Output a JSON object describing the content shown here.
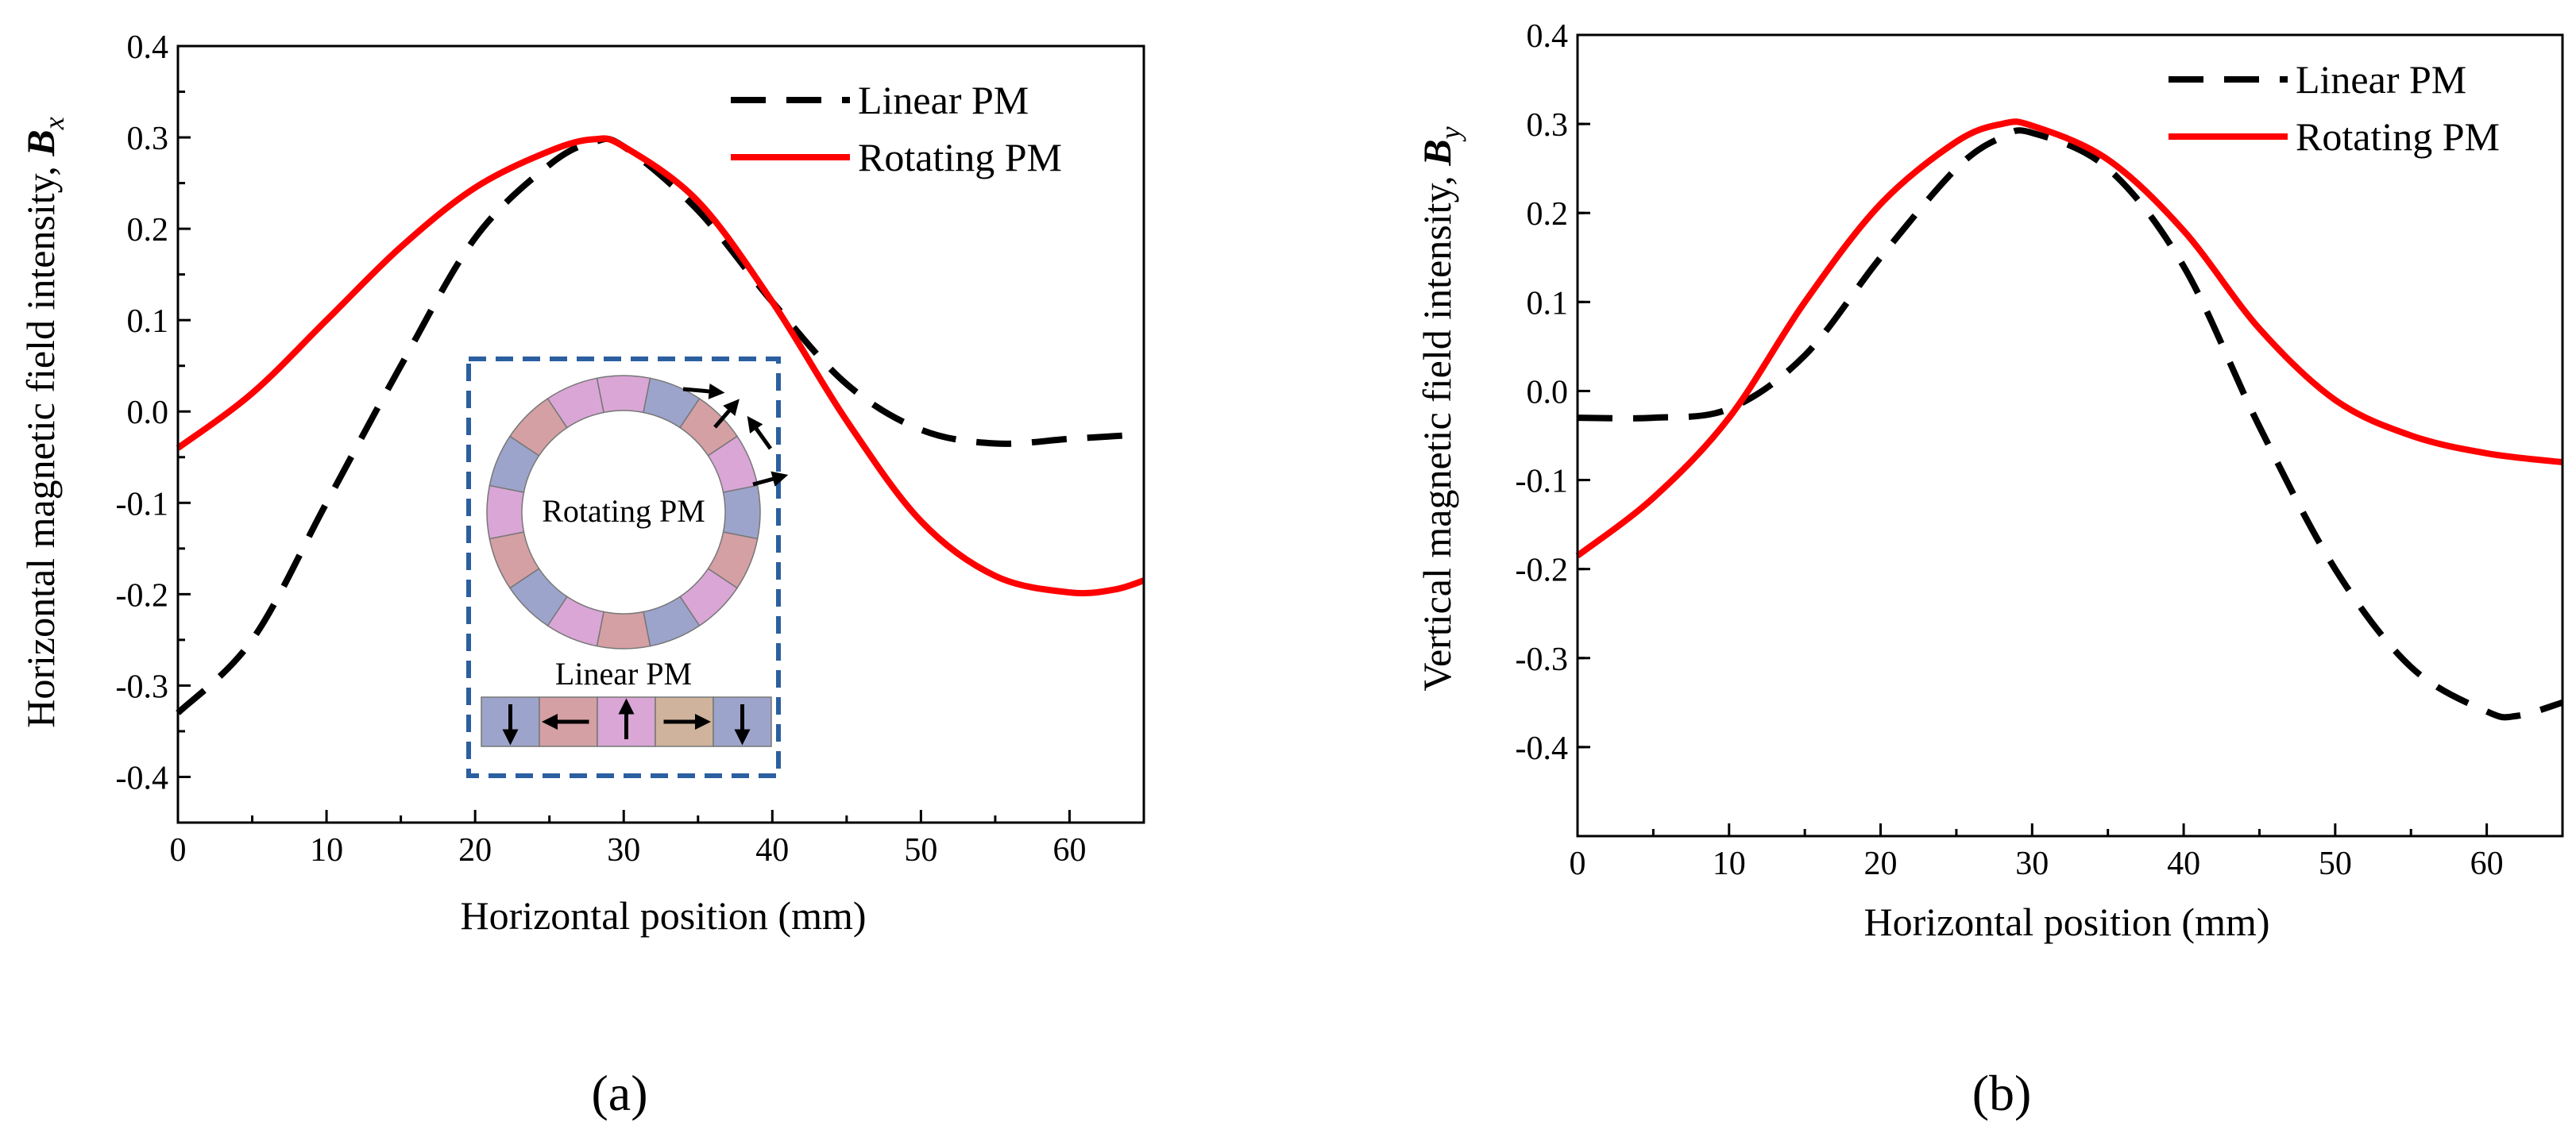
{
  "panel_labels": [
    "(a)",
    "(b)"
  ],
  "chart_data": [
    {
      "type": "line",
      "panel": "(a)",
      "title": "",
      "xlabel": "Horizontal position (mm)",
      "ylabel": "Horizontal magnetic field intensity, ",
      "ylabel_symbol": "B",
      "ylabel_sub": "x",
      "xlim": [
        0,
        65
      ],
      "ylim": [
        -0.45,
        0.4
      ],
      "xticks": [
        0,
        10,
        20,
        30,
        40,
        50,
        60
      ],
      "yticks": [
        -0.4,
        -0.3,
        -0.2,
        -0.1,
        0.0,
        0.1,
        0.2,
        0.3,
        0.4
      ],
      "ytick_labels": [
        "-0.4",
        "-0.3",
        "-0.2",
        "-0.1",
        "0.0",
        "0.1",
        "0.2",
        "0.3",
        "0.4"
      ],
      "grid": true,
      "legend_position": "top-right",
      "series": [
        {
          "name": "Linear PM",
          "style": "dashed",
          "color": "#000000",
          "x": [
            0,
            5,
            10,
            15,
            20,
            25,
            28,
            30,
            35,
            40,
            45,
            50,
            55,
            60,
            65
          ],
          "y": [
            -0.33,
            -0.25,
            -0.1,
            0.05,
            0.19,
            0.27,
            0.295,
            0.29,
            0.22,
            0.12,
            0.03,
            -0.02,
            -0.035,
            -0.03,
            -0.025
          ]
        },
        {
          "name": "Rotating PM",
          "style": "solid",
          "color": "#ff0000",
          "x": [
            0,
            5,
            10,
            15,
            20,
            25,
            28,
            30,
            35,
            40,
            45,
            50,
            55,
            60,
            63,
            65
          ],
          "y": [
            -0.04,
            0.02,
            0.1,
            0.18,
            0.245,
            0.285,
            0.298,
            0.29,
            0.23,
            0.12,
            -0.01,
            -0.12,
            -0.18,
            -0.198,
            -0.195,
            -0.185
          ]
        }
      ],
      "inset": {
        "ring_label": "Rotating PM",
        "bar_label": "Linear PM",
        "ring_segment_colors": [
          "#d9a6d6",
          "#9da4cb",
          "#d4a0a4",
          "#d9a6d6",
          "#9da4cb",
          "#d4a0a4",
          "#d9a6d6",
          "#9da4cb",
          "#d4a0a4",
          "#d9a6d6",
          "#9da4cb",
          "#d4a0a4",
          "#d9a6d6",
          "#9da4cb",
          "#d4a0a4",
          "#d9a6d6"
        ],
        "bar_segment_colors": [
          "#9da4cb",
          "#d4a0a4",
          "#d9a6d6",
          "#cfb39c",
          "#9da4cb"
        ],
        "bar_arrows": [
          "down",
          "left",
          "up",
          "right",
          "down"
        ],
        "border_color": "#2b5fa0"
      }
    },
    {
      "type": "line",
      "panel": "(b)",
      "title": "",
      "xlabel": "Horizontal position (mm)",
      "ylabel": "Vertical magnetic field intensity, ",
      "ylabel_symbol": "B",
      "ylabel_sub": "y",
      "xlim": [
        0,
        65
      ],
      "ylim": [
        -0.5,
        0.4
      ],
      "xticks": [
        0,
        10,
        20,
        30,
        40,
        50,
        60
      ],
      "yticks": [
        -0.4,
        -0.3,
        -0.2,
        -0.1,
        0.0,
        0.1,
        0.2,
        0.3,
        0.4
      ],
      "ytick_labels": [
        "-0.4",
        "-0.3",
        "-0.2",
        "-0.1",
        "0.0",
        "0.1",
        "0.2",
        "0.3",
        "0.4"
      ],
      "grid": true,
      "legend_position": "top-right",
      "series": [
        {
          "name": "Linear PM",
          "style": "dashed",
          "color": "#000000",
          "x": [
            0,
            5,
            10,
            15,
            20,
            25,
            28,
            30,
            35,
            40,
            45,
            50,
            55,
            60,
            62,
            65
          ],
          "y": [
            -0.03,
            -0.03,
            -0.02,
            0.04,
            0.15,
            0.25,
            0.285,
            0.29,
            0.25,
            0.14,
            -0.04,
            -0.2,
            -0.31,
            -0.36,
            -0.365,
            -0.35
          ]
        },
        {
          "name": "Rotating PM",
          "style": "solid",
          "color": "#ff0000",
          "x": [
            0,
            5,
            10,
            15,
            20,
            25,
            28,
            30,
            35,
            40,
            45,
            50,
            55,
            60,
            65
          ],
          "y": [
            -0.185,
            -0.12,
            -0.03,
            0.1,
            0.21,
            0.28,
            0.3,
            0.298,
            0.26,
            0.18,
            0.07,
            -0.01,
            -0.05,
            -0.07,
            -0.08
          ]
        }
      ]
    }
  ]
}
